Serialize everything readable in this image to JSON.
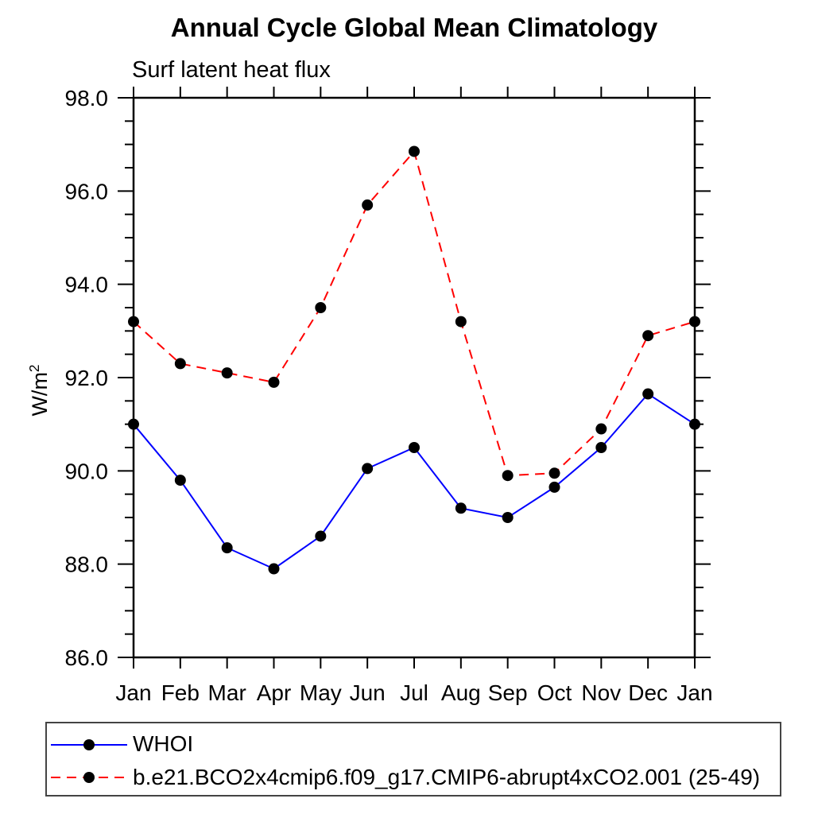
{
  "chart_data": {
    "type": "line",
    "title": "Annual Cycle Global Mean Climatology",
    "subtitle": "Surf latent heat flux",
    "ylabel": "W/m²",
    "ylabel_base": "W/m",
    "ylabel_exp": "2",
    "x_categories": [
      "Jan",
      "Feb",
      "Mar",
      "Apr",
      "May",
      "Jun",
      "Jul",
      "Aug",
      "Sep",
      "Oct",
      "Nov",
      "Dec",
      "Jan"
    ],
    "ylim": [
      86.0,
      98.0
    ],
    "y_major_step": 2.0,
    "y_minor_step": 0.5,
    "y_tick_labels": [
      "86.0",
      "88.0",
      "90.0",
      "92.0",
      "94.0",
      "96.0",
      "98.0"
    ],
    "grid": false,
    "legend_position": "bottom-left",
    "marker_color": "#000000",
    "series": [
      {
        "name": "WHOI",
        "color": "#0000ff",
        "line_style": "solid",
        "marker": "filled-circle",
        "values": [
          91.0,
          89.8,
          88.35,
          87.9,
          88.6,
          90.05,
          90.5,
          89.2,
          89.0,
          89.65,
          90.5,
          91.65,
          91.0
        ]
      },
      {
        "name": "b.e21.BCO2x4cmip6.f09_g17.CMIP6-abrupt4xCO2.001 (25-49)",
        "color": "#ff0000",
        "line_style": "dashed",
        "marker": "filled-circle",
        "values": [
          93.2,
          92.3,
          92.1,
          91.9,
          93.5,
          95.7,
          96.85,
          93.2,
          89.9,
          89.95,
          90.9,
          92.9,
          93.2
        ]
      }
    ]
  }
}
